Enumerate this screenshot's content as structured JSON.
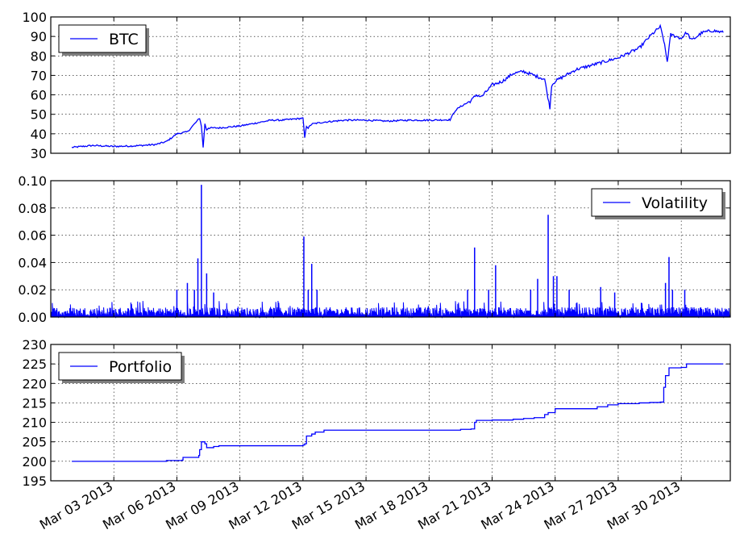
{
  "chart_data": [
    {
      "type": "line",
      "ylim": [
        30,
        100
      ],
      "yticks": [
        30,
        40,
        50,
        60,
        70,
        80,
        90,
        100
      ],
      "ytick_labels": [
        "30",
        "40",
        "50",
        "60",
        "70",
        "80",
        "90",
        "100"
      ],
      "grid": true,
      "legend_position": "upper-left",
      "series": [
        {
          "name": "BTC",
          "color": "#0000ff",
          "x": [
            "2013-03-01",
            "2013-03-01T12",
            "2013-03-02",
            "2013-03-03",
            "2013-03-04",
            "2013-03-05",
            "2013-03-05T12",
            "2013-03-06",
            "2013-03-06T12",
            "2013-03-06T18",
            "2013-03-07",
            "2013-03-07T02",
            "2013-03-07T04",
            "2013-03-07T06",
            "2013-03-07T08",
            "2013-03-07T10",
            "2013-03-07T12",
            "2013-03-08",
            "2013-03-09",
            "2013-03-10",
            "2013-03-10T12",
            "2013-03-11",
            "2013-03-12",
            "2013-03-12T02",
            "2013-03-12T04",
            "2013-03-12T06",
            "2013-03-12T10",
            "2013-03-13",
            "2013-03-14",
            "2013-03-15",
            "2013-03-16",
            "2013-03-17",
            "2013-03-18",
            "2013-03-19",
            "2013-03-19T06",
            "2013-03-19T12",
            "2013-03-20",
            "2013-03-20T06",
            "2013-03-20T12",
            "2013-03-21",
            "2013-03-21T12",
            "2013-03-22",
            "2013-03-22T12",
            "2013-03-23",
            "2013-03-23T12",
            "2013-03-23T18",
            "2013-03-23T20",
            "2013-03-24",
            "2013-03-24T12",
            "2013-03-25",
            "2013-03-26",
            "2013-03-27",
            "2013-03-28",
            "2013-03-28T12",
            "2013-03-29",
            "2013-03-29T04",
            "2013-03-29T08",
            "2013-03-29T12",
            "2013-03-30",
            "2013-03-30T06",
            "2013-03-30T12",
            "2013-03-31",
            "2013-03-31T12",
            "2013-04-01"
          ],
          "values": [
            33,
            33.5,
            34,
            33.5,
            33.8,
            34.5,
            36,
            40,
            41,
            44,
            47,
            48,
            44,
            33,
            45,
            42,
            43,
            43,
            44,
            46,
            47,
            47,
            48,
            38,
            44,
            43,
            45,
            46,
            47,
            47,
            46.5,
            47,
            47,
            47.2,
            52,
            54,
            57,
            60,
            59,
            65,
            67,
            71,
            72,
            70,
            68,
            53,
            65,
            67,
            70,
            73,
            76,
            79,
            84,
            90,
            95,
            88,
            77,
            91,
            89,
            92,
            88,
            92,
            93,
            92
          ]
        }
      ]
    },
    {
      "type": "line",
      "ylim": [
        0,
        0.1
      ],
      "yticks": [
        0,
        0.02,
        0.04,
        0.06,
        0.08,
        0.1
      ],
      "ytick_labels": [
        "0.00",
        "0.02",
        "0.04",
        "0.06",
        "0.08",
        "0.10"
      ],
      "grid": true,
      "legend_position": "upper-right",
      "series": [
        {
          "name": "Volatility",
          "color": "#0000ff",
          "baseline": 0.004,
          "spikes": [
            {
              "x": "2013-03-06T00",
              "value": 0.02
            },
            {
              "x": "2013-03-06T12",
              "value": 0.025
            },
            {
              "x": "2013-03-06T20",
              "value": 0.02
            },
            {
              "x": "2013-03-07T00",
              "value": 0.043
            },
            {
              "x": "2013-03-07T04",
              "value": 0.097
            },
            {
              "x": "2013-03-07T10",
              "value": 0.032
            },
            {
              "x": "2013-03-07T18",
              "value": 0.018
            },
            {
              "x": "2013-03-12T01",
              "value": 0.059
            },
            {
              "x": "2013-03-12T06",
              "value": 0.02
            },
            {
              "x": "2013-03-12T10",
              "value": 0.039
            },
            {
              "x": "2013-03-12T16",
              "value": 0.02
            },
            {
              "x": "2013-03-19T20",
              "value": 0.02
            },
            {
              "x": "2013-03-20T04",
              "value": 0.051
            },
            {
              "x": "2013-03-20T20",
              "value": 0.02
            },
            {
              "x": "2013-03-21T04",
              "value": 0.038
            },
            {
              "x": "2013-03-22T20",
              "value": 0.02
            },
            {
              "x": "2013-03-23T04",
              "value": 0.028
            },
            {
              "x": "2013-03-23T16",
              "value": 0.075
            },
            {
              "x": "2013-03-23T22",
              "value": 0.03
            },
            {
              "x": "2013-03-24T02",
              "value": 0.03
            },
            {
              "x": "2013-03-24T16",
              "value": 0.02
            },
            {
              "x": "2013-03-26T04",
              "value": 0.022
            },
            {
              "x": "2013-03-26T20",
              "value": 0.018
            },
            {
              "x": "2013-03-29T06",
              "value": 0.025
            },
            {
              "x": "2013-03-29T10",
              "value": 0.044
            },
            {
              "x": "2013-03-29T14",
              "value": 0.02
            },
            {
              "x": "2013-03-30T04",
              "value": 0.02
            }
          ]
        }
      ]
    },
    {
      "type": "line",
      "ylim": [
        195,
        230
      ],
      "yticks": [
        195,
        200,
        205,
        210,
        215,
        220,
        225,
        230
      ],
      "ytick_labels": [
        "195",
        "200",
        "205",
        "210",
        "215",
        "220",
        "225",
        "230"
      ],
      "grid": true,
      "legend_position": "upper-left",
      "x_tick_labels": [
        "Mar 03 2013",
        "Mar 06 2013",
        "Mar 09 2013",
        "Mar 12 2013",
        "Mar 15 2013",
        "Mar 18 2013",
        "Mar 21 2013",
        "Mar 24 2013",
        "Mar 27 2013",
        "Mar 30 2013"
      ],
      "series": [
        {
          "name": "Portfolio",
          "color": "#0000ff",
          "x": [
            "2013-03-01",
            "2013-03-05",
            "2013-03-05T12",
            "2013-03-06T06",
            "2013-03-06T07",
            "2013-03-07",
            "2013-03-07T01",
            "2013-03-07T02",
            "2013-03-07T04",
            "2013-03-07T08",
            "2013-03-07T10",
            "2013-03-07T18",
            "2013-03-08",
            "2013-03-11",
            "2013-03-12",
            "2013-03-12T02",
            "2013-03-12T04",
            "2013-03-12T10",
            "2013-03-12T14",
            "2013-03-13",
            "2013-03-19",
            "2013-03-19T12",
            "2013-03-20",
            "2013-03-20T04",
            "2013-03-20T06",
            "2013-03-21",
            "2013-03-22",
            "2013-03-22T12",
            "2013-03-23",
            "2013-03-23T02",
            "2013-03-23T12",
            "2013-03-23T16",
            "2013-03-24",
            "2013-03-25",
            "2013-03-26",
            "2013-03-26T12",
            "2013-03-27",
            "2013-03-28",
            "2013-03-28T12",
            "2013-03-29",
            "2013-03-29T02",
            "2013-03-29T04",
            "2013-03-29T06",
            "2013-03-29T10",
            "2013-03-30",
            "2013-03-30T06",
            "2013-04-01"
          ],
          "values": [
            200,
            200,
            200.2,
            200.3,
            201,
            201,
            201.5,
            203,
            205,
            204.5,
            203.5,
            203.8,
            204,
            204,
            204.2,
            204.5,
            206.5,
            207,
            207.5,
            208,
            208,
            208.2,
            208.3,
            210,
            210.5,
            210.6,
            210.8,
            211,
            211.2,
            211.2,
            212,
            212.5,
            213.5,
            213.5,
            214,
            214.5,
            214.8,
            215,
            215.1,
            215.2,
            215.2,
            219,
            222,
            224,
            224.1,
            225,
            225
          ]
        }
      ]
    }
  ]
}
